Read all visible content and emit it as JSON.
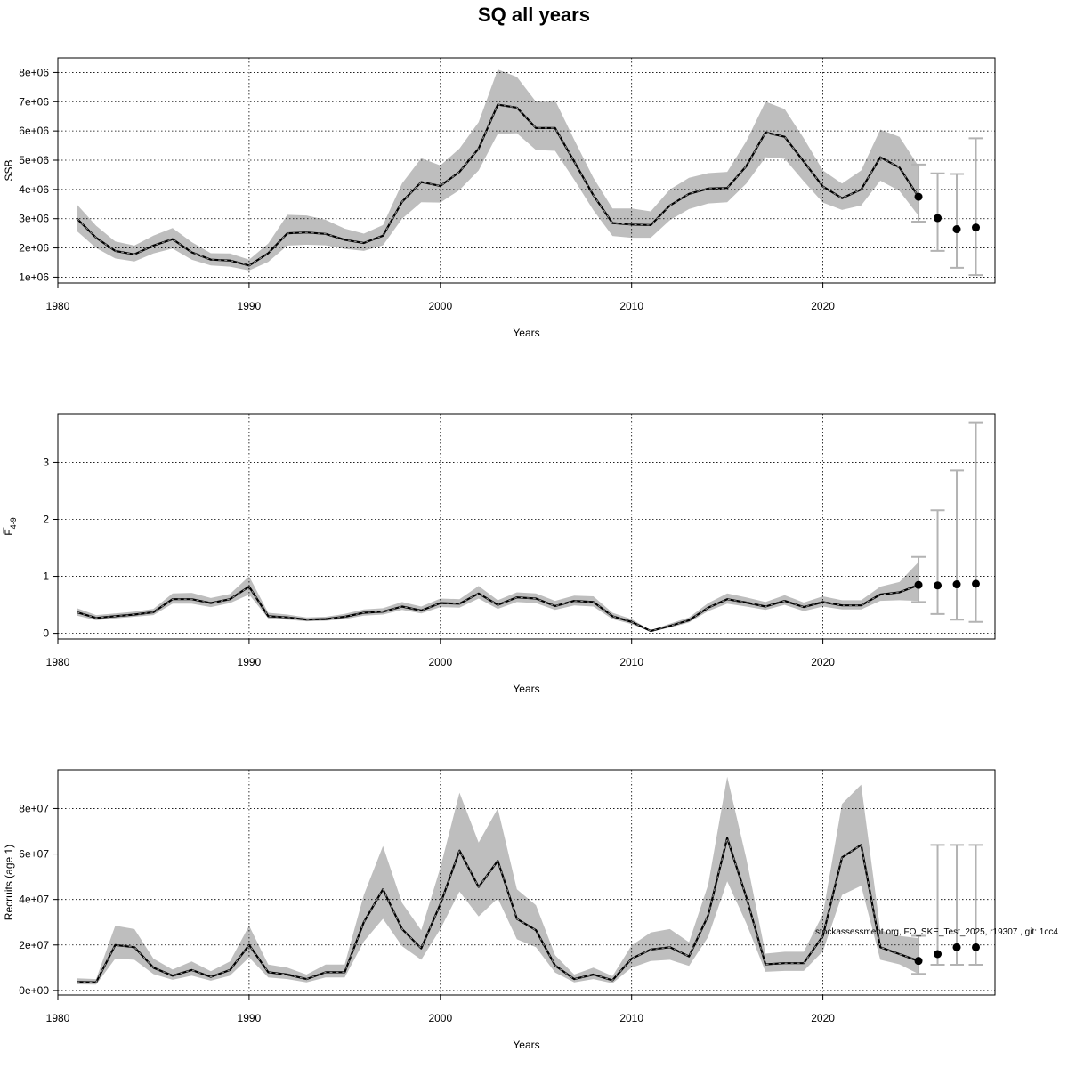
{
  "title": "SQ all years",
  "footer_note": "stockassessment.org, FO_SKE_Test_2025, r19307 , git: 1cc4",
  "colors": {
    "band": "#bebebe",
    "line": "#000000",
    "forecast_bar": "#b3b3b3",
    "grid": "#000000"
  },
  "chart_data": [
    {
      "type": "line",
      "panel": "ssb",
      "ylabel": "SSB",
      "ylabel_sub": "",
      "xlabel": "Years",
      "xlim": [
        1980,
        2029
      ],
      "ylim": [
        800000,
        8500000
      ],
      "x_ticks": [
        1980,
        1990,
        2000,
        2010,
        2020
      ],
      "y_ticks": [
        1000000,
        2000000,
        3000000,
        4000000,
        5000000,
        6000000,
        7000000,
        8000000
      ],
      "y_tick_labels": [
        "1e+06",
        "2e+06",
        "3e+06",
        "4e+06",
        "5e+06",
        "6e+06",
        "7e+06",
        "8e+06"
      ],
      "grid": true,
      "years": [
        1981,
        1982,
        1983,
        1984,
        1985,
        1986,
        1987,
        1988,
        1989,
        1990,
        1991,
        1992,
        1993,
        1994,
        1995,
        1996,
        1997,
        1998,
        1999,
        2000,
        2001,
        2002,
        2003,
        2004,
        2005,
        2006,
        2007,
        2008,
        2009,
        2010,
        2011,
        2012,
        2013,
        2014,
        2015,
        2016,
        2017,
        2018,
        2019,
        2020,
        2021,
        2022,
        2023,
        2024,
        2025
      ],
      "estimate": [
        3000000,
        2350000,
        1900000,
        1780000,
        2080000,
        2300000,
        1850000,
        1600000,
        1570000,
        1400000,
        1820000,
        2500000,
        2530000,
        2480000,
        2280000,
        2170000,
        2420000,
        3580000,
        4250000,
        4120000,
        4600000,
        5400000,
        6900000,
        6800000,
        6100000,
        6100000,
        4950000,
        3800000,
        2850000,
        2800000,
        2780000,
        3450000,
        3850000,
        4030000,
        4050000,
        4800000,
        5950000,
        5800000,
        4950000,
        4100000,
        3700000,
        4000000,
        5100000,
        4750000,
        3750000
      ],
      "lower": [
        2570000,
        2000000,
        1640000,
        1540000,
        1810000,
        1980000,
        1600000,
        1400000,
        1360000,
        1230000,
        1520000,
        2080000,
        2110000,
        2090000,
        1970000,
        1900000,
        2090000,
        3000000,
        3560000,
        3550000,
        3980000,
        4650000,
        5900000,
        5920000,
        5350000,
        5320000,
        4330000,
        3290000,
        2410000,
        2350000,
        2350000,
        2950000,
        3330000,
        3520000,
        3560000,
        4200000,
        5100000,
        5050000,
        4280000,
        3550000,
        3300000,
        3450000,
        4300000,
        3950000,
        3100000
      ],
      "upper": [
        3480000,
        2760000,
        2220000,
        2080000,
        2420000,
        2680000,
        2200000,
        1820000,
        1810000,
        1600000,
        2150000,
        3130000,
        3110000,
        2960000,
        2660000,
        2490000,
        2780000,
        4210000,
        5070000,
        4820000,
        5400000,
        6300000,
        8100000,
        7850000,
        7000000,
        7050000,
        5700000,
        4400000,
        3350000,
        3350000,
        3250000,
        4000000,
        4400000,
        4560000,
        4600000,
        5650000,
        7000000,
        6750000,
        5750000,
        4650000,
        4200000,
        4650000,
        6050000,
        5800000,
        4800000
      ],
      "forecast": [
        {
          "year": 2025,
          "median": 3750000,
          "low": 2900000,
          "high": 4850000
        },
        {
          "year": 2026,
          "median": 3020000,
          "low": 1900000,
          "high": 4550000
        },
        {
          "year": 2027,
          "median": 2640000,
          "low": 1320000,
          "high": 4530000
        },
        {
          "year": 2028,
          "median": 2700000,
          "low": 1070000,
          "high": 5750000
        }
      ]
    },
    {
      "type": "line",
      "panel": "fbar",
      "ylabel": "F",
      "ylabel_sub": "4-9",
      "xlabel": "Years",
      "xlim": [
        1980,
        2029
      ],
      "ylim": [
        -0.1,
        3.85
      ],
      "x_ticks": [
        1980,
        1990,
        2000,
        2010,
        2020
      ],
      "y_ticks": [
        0,
        1,
        2,
        3
      ],
      "y_tick_labels": [
        "0",
        "1",
        "2",
        "3"
      ],
      "grid": true,
      "years": [
        1981,
        1982,
        1983,
        1984,
        1985,
        1986,
        1987,
        1988,
        1989,
        1990,
        1991,
        1992,
        1993,
        1994,
        1995,
        1996,
        1997,
        1998,
        1999,
        2000,
        2001,
        2002,
        2003,
        2004,
        2005,
        2006,
        2007,
        2008,
        2009,
        2010,
        2011,
        2012,
        2013,
        2014,
        2015,
        2016,
        2017,
        2018,
        2019,
        2020,
        2021,
        2022,
        2023,
        2024,
        2025
      ],
      "estimate": [
        0.37,
        0.27,
        0.3,
        0.33,
        0.37,
        0.6,
        0.6,
        0.53,
        0.6,
        0.82,
        0.3,
        0.28,
        0.24,
        0.25,
        0.29,
        0.36,
        0.38,
        0.47,
        0.4,
        0.53,
        0.52,
        0.7,
        0.5,
        0.63,
        0.61,
        0.48,
        0.57,
        0.55,
        0.3,
        0.2,
        0.04,
        0.13,
        0.23,
        0.45,
        0.6,
        0.54,
        0.47,
        0.57,
        0.46,
        0.55,
        0.49,
        0.49,
        0.68,
        0.72,
        0.85
      ],
      "lower": [
        0.31,
        0.23,
        0.26,
        0.29,
        0.32,
        0.52,
        0.52,
        0.46,
        0.53,
        0.68,
        0.26,
        0.24,
        0.21,
        0.22,
        0.25,
        0.31,
        0.33,
        0.41,
        0.35,
        0.46,
        0.45,
        0.61,
        0.43,
        0.55,
        0.53,
        0.41,
        0.49,
        0.47,
        0.25,
        0.16,
        0.03,
        0.1,
        0.19,
        0.39,
        0.52,
        0.47,
        0.41,
        0.5,
        0.39,
        0.47,
        0.42,
        0.42,
        0.57,
        0.58,
        0.57
      ],
      "upper": [
        0.44,
        0.32,
        0.35,
        0.38,
        0.43,
        0.7,
        0.71,
        0.62,
        0.69,
        1.0,
        0.36,
        0.33,
        0.28,
        0.29,
        0.34,
        0.42,
        0.44,
        0.55,
        0.47,
        0.61,
        0.6,
        0.83,
        0.58,
        0.72,
        0.7,
        0.57,
        0.66,
        0.65,
        0.36,
        0.25,
        0.05,
        0.17,
        0.28,
        0.53,
        0.7,
        0.63,
        0.55,
        0.67,
        0.54,
        0.65,
        0.58,
        0.58,
        0.82,
        0.9,
        1.25
      ],
      "forecast": [
        {
          "year": 2025,
          "median": 0.85,
          "low": 0.55,
          "high": 1.34
        },
        {
          "year": 2026,
          "median": 0.84,
          "low": 0.34,
          "high": 2.16
        },
        {
          "year": 2027,
          "median": 0.86,
          "low": 0.24,
          "high": 2.86
        },
        {
          "year": 2028,
          "median": 0.87,
          "low": 0.2,
          "high": 3.7
        }
      ]
    },
    {
      "type": "line",
      "panel": "recruits",
      "ylabel": "Recruits (age 1)",
      "ylabel_sub": "",
      "xlabel": "Years",
      "xlim": [
        1980,
        2029
      ],
      "ylim": [
        -2000000,
        97000000
      ],
      "x_ticks": [
        1980,
        1990,
        2000,
        2010,
        2020
      ],
      "y_ticks": [
        0,
        20000000,
        40000000,
        60000000,
        80000000
      ],
      "y_tick_labels": [
        "0e+00",
        "2e+07",
        "4e+07",
        "6e+07",
        "8e+07"
      ],
      "grid": true,
      "years": [
        1981,
        1982,
        1983,
        1984,
        1985,
        1986,
        1987,
        1988,
        1989,
        1990,
        1991,
        1992,
        1993,
        1994,
        1995,
        1996,
        1997,
        1998,
        1999,
        2000,
        2001,
        2002,
        2003,
        2004,
        2005,
        2006,
        2007,
        2008,
        2009,
        2010,
        2011,
        2012,
        2013,
        2014,
        2015,
        2016,
        2017,
        2018,
        2019,
        2020,
        2021,
        2022,
        2023,
        2024,
        2025
      ],
      "estimate": [
        3800000,
        3600000,
        20000000,
        19000000,
        10000000,
        6500000,
        9000000,
        6000000,
        9000000,
        20000000,
        8000000,
        7000000,
        5000000,
        8000000,
        8000000,
        30000000,
        44500000,
        27000000,
        18500000,
        38000000,
        61500000,
        45500000,
        57000000,
        31500000,
        26500000,
        11000000,
        5000000,
        7000000,
        4500000,
        14000000,
        18000000,
        19000000,
        15000000,
        33000000,
        67000000,
        41000000,
        11500000,
        12000000,
        12000000,
        24000000,
        58500000,
        64000000,
        19000000,
        16000000,
        13000000
      ],
      "lower": [
        2700000,
        2600000,
        14000000,
        13500000,
        7200000,
        4700000,
        6500000,
        4300000,
        6500000,
        14500000,
        5700000,
        5000000,
        3600000,
        5700000,
        5700000,
        21500000,
        31500000,
        19500000,
        13500000,
        27000000,
        43500000,
        32500000,
        40500000,
        22500000,
        19000000,
        7900000,
        3600000,
        5000000,
        3200000,
        10000000,
        13000000,
        13500000,
        10800000,
        23500000,
        48000000,
        29500000,
        8200000,
        8600000,
        8600000,
        17200000,
        42000000,
        46000000,
        13500000,
        11500000,
        7300000
      ],
      "upper": [
        5300000,
        5000000,
        28500000,
        27000000,
        14000000,
        9200000,
        12800000,
        8500000,
        12800000,
        28500000,
        11400000,
        10000000,
        7000000,
        11400000,
        11400000,
        42000000,
        63500000,
        38500000,
        26500000,
        54000000,
        87000000,
        65000000,
        80000000,
        44500000,
        37500000,
        15500000,
        7000000,
        10000000,
        6300000,
        19800000,
        25500000,
        27000000,
        21200000,
        46500000,
        94000000,
        58000000,
        16200000,
        17000000,
        17000000,
        33500000,
        82000000,
        90500000,
        26500000,
        24000000,
        23000000
      ],
      "forecast": [
        {
          "year": 2025,
          "median": 13000000,
          "low": 7300000,
          "high": 24000000
        },
        {
          "year": 2026,
          "median": 16000000,
          "low": 11300000,
          "high": 64000000
        },
        {
          "year": 2027,
          "median": 19000000,
          "low": 11300000,
          "high": 64000000
        },
        {
          "year": 2028,
          "median": 19000000,
          "low": 11300000,
          "high": 64000000
        }
      ]
    }
  ]
}
